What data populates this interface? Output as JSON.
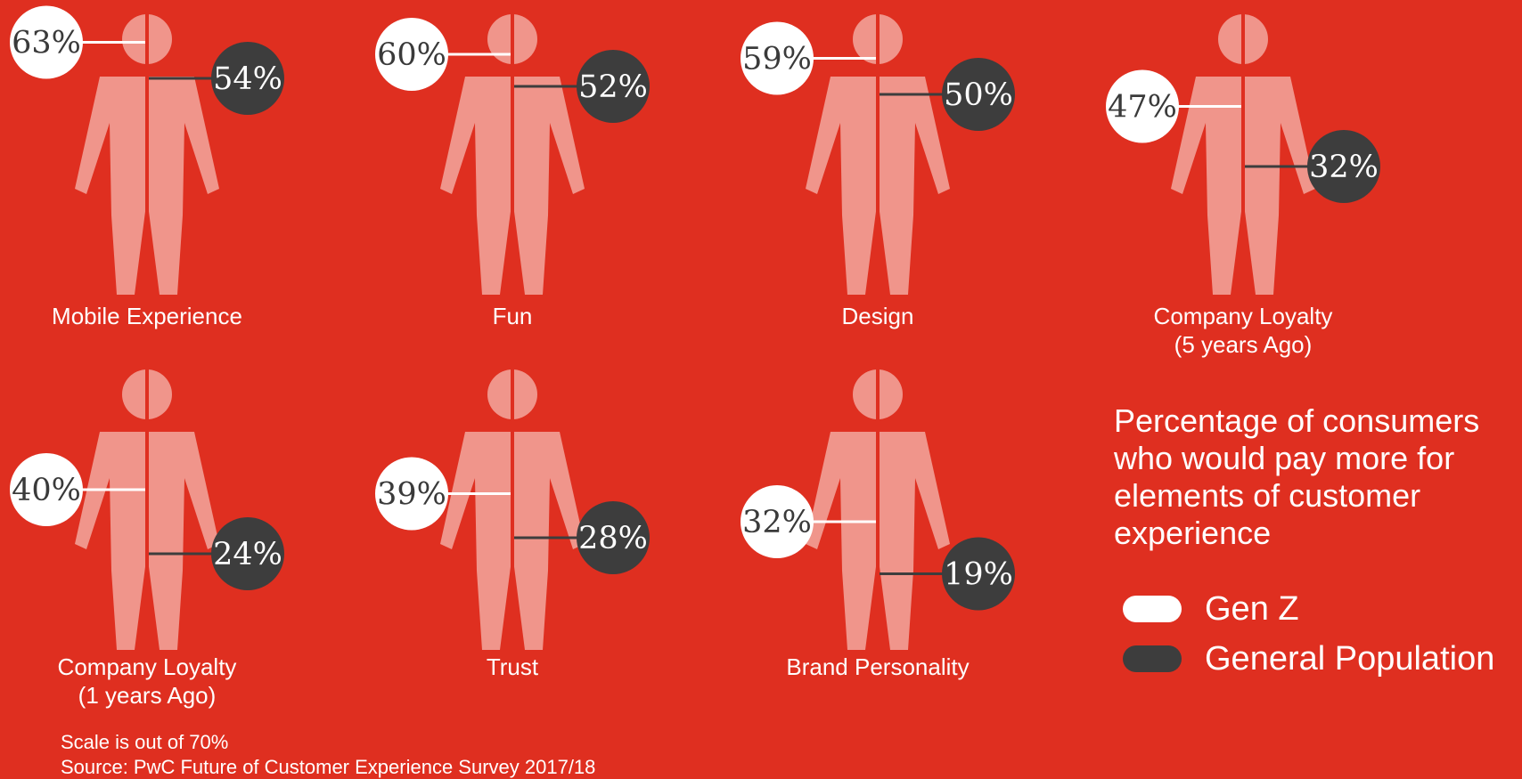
{
  "chart_data": {
    "type": "pictogram",
    "title": "Percentage of consumers who would pay more for elements of customer experience",
    "scale_max": 70,
    "series": [
      {
        "name": "Gen Z",
        "color": "#ffffff"
      },
      {
        "name": "General Population",
        "color": "#3d3d3d"
      }
    ],
    "items": [
      {
        "label_lines": [
          "Mobile Experience"
        ],
        "gen_z": 63,
        "general_population": 54
      },
      {
        "label_lines": [
          "Fun"
        ],
        "gen_z": 60,
        "general_population": 52
      },
      {
        "label_lines": [
          "Design"
        ],
        "gen_z": 59,
        "general_population": 50
      },
      {
        "label_lines": [
          "Company Loyalty",
          "(5 years Ago)"
        ],
        "gen_z": 47,
        "general_population": 32
      },
      {
        "label_lines": [
          "Company Loyalty",
          "(1 years Ago)"
        ],
        "gen_z": 40,
        "general_population": 24
      },
      {
        "label_lines": [
          "Trust"
        ],
        "gen_z": 39,
        "general_population": 28
      },
      {
        "label_lines": [
          "Brand Personality"
        ],
        "gen_z": 32,
        "general_population": 19
      }
    ]
  },
  "legend": {
    "title": "Percentage of consumers who would pay more for elements of customer experience",
    "items": [
      {
        "label": "Gen Z",
        "color": "#ffffff"
      },
      {
        "label": "General Population",
        "color": "#3d3d3d"
      }
    ]
  },
  "notes": {
    "scale": "Scale is out of 70%",
    "source": "Source: PwC Future of Customer Experience Survey 2017/18"
  },
  "colors": {
    "background": "#df2f20",
    "figure": "#f0958b",
    "gen_z": "#ffffff",
    "general_population": "#3d3d3d"
  }
}
